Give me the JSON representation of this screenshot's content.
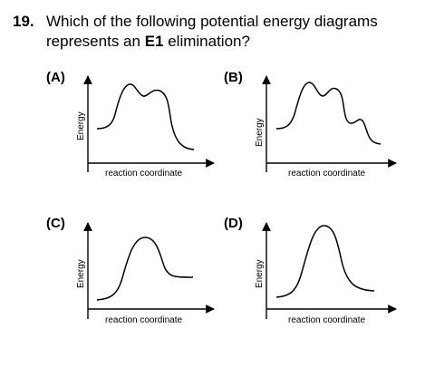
{
  "question": {
    "number": "19.",
    "line1": "Which of the following potential energy diagrams",
    "line2_prefix": "represents an ",
    "line2_bold": "E1",
    "line2_suffix": " elimination?"
  },
  "options": [
    {
      "label": "(A)",
      "ylabel": "Energy",
      "xlabel": "reaction coordinate"
    },
    {
      "label": "(B)",
      "ylabel": "Energy",
      "xlabel": "reaction coordinate"
    },
    {
      "label": "(C)",
      "ylabel": "Energy",
      "xlabel": "reaction coordinate"
    },
    {
      "label": "(D)",
      "ylabel": "Energy",
      "xlabel": "reaction coordinate"
    }
  ],
  "colors": {
    "ink": "#000000",
    "background": "#ffffff"
  }
}
